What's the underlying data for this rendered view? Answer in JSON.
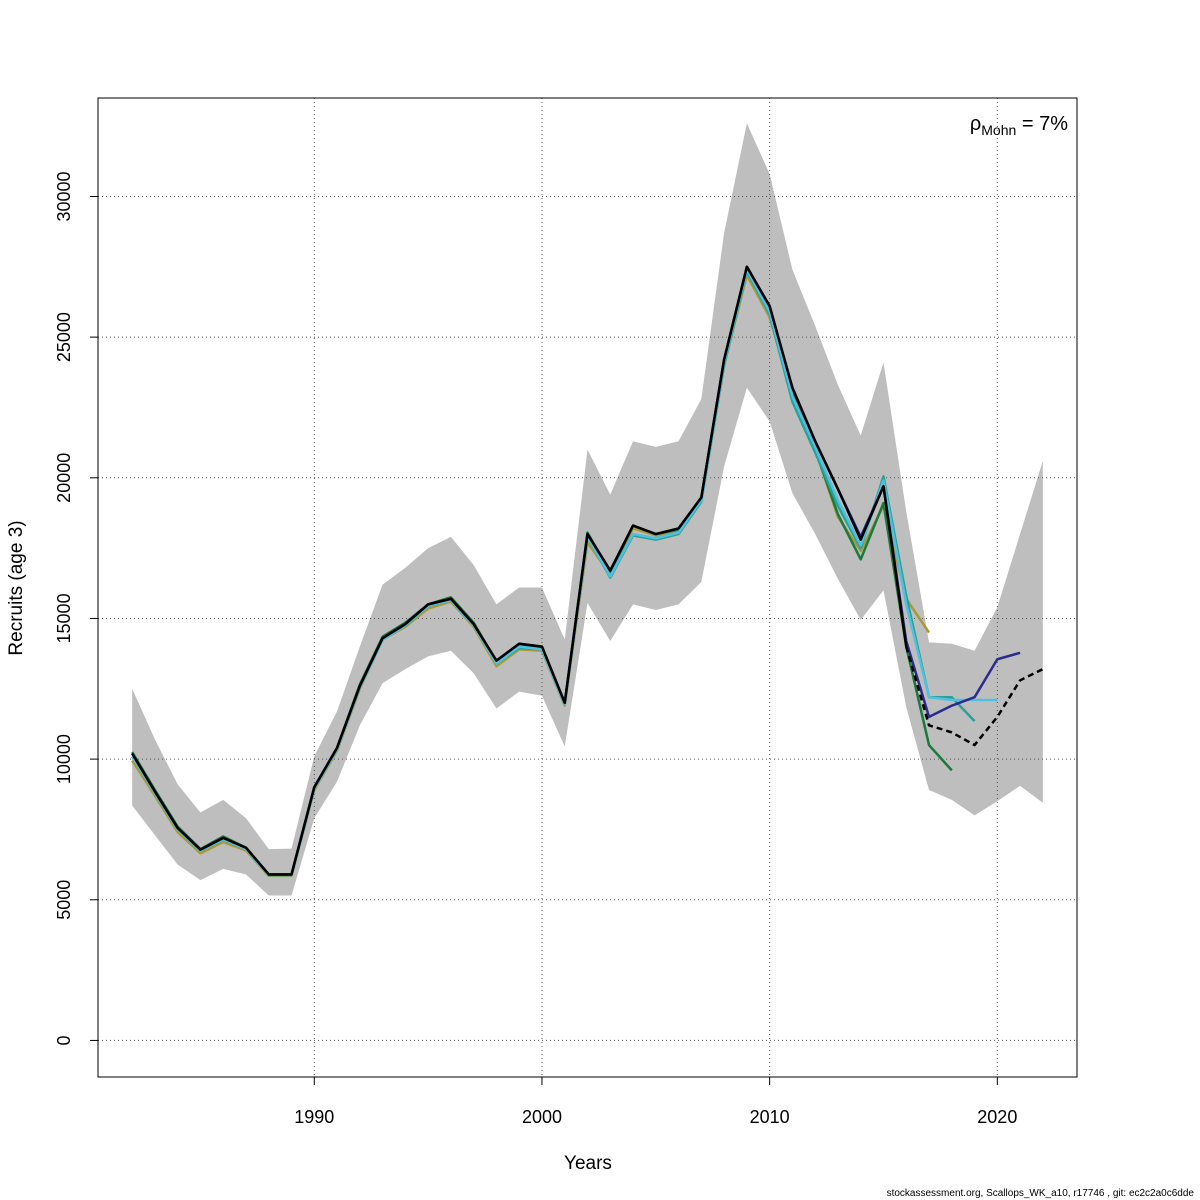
{
  "chart_data": {
    "type": "line",
    "xlabel": "Years",
    "ylabel": "Recruits (age 3)",
    "xlim": [
      1980.5,
      2023.5
    ],
    "ylim": [
      -1300,
      33500
    ],
    "x_ticks": [
      1990,
      2000,
      2010,
      2020
    ],
    "y_ticks": [
      0,
      5000,
      10000,
      15000,
      20000,
      25000,
      30000
    ],
    "grid": true,
    "annotation": {
      "symbol": "ρ",
      "subscript": "Mohn",
      "value": " = 7%"
    },
    "footer": "stockassessment.org, Scallops_WK_a10, r17746 , git: ec2c2a0c6dde",
    "confidence_band": {
      "color": "#bebebe",
      "x": [
        1982,
        1983,
        1984,
        1985,
        1986,
        1987,
        1988,
        1989,
        1990,
        1991,
        1992,
        1993,
        1994,
        1995,
        1996,
        1997,
        1998,
        1999,
        2000,
        2001,
        2002,
        2003,
        2004,
        2005,
        2006,
        2007,
        2008,
        2009,
        2010,
        2011,
        2012,
        2013,
        2014,
        2015,
        2016,
        2017,
        2018,
        2019,
        2020,
        2021,
        2022
      ],
      "upper": [
        12500,
        10700,
        9100,
        8100,
        8550,
        7900,
        6800,
        6820,
        10100,
        11700,
        14000,
        16200,
        16800,
        17500,
        17900,
        16900,
        15500,
        16100,
        16100,
        14250,
        21000,
        19400,
        21300,
        21100,
        21300,
        22800,
        28700,
        32600,
        30800,
        27400,
        25400,
        23300,
        21500,
        24100,
        18800,
        14150,
        14100,
        13850,
        15400,
        18000,
        20600
      ],
      "lower": [
        8350,
        7300,
        6250,
        5700,
        6100,
        5900,
        5150,
        5150,
        7900,
        9200,
        11200,
        12700,
        13200,
        13650,
        13850,
        13050,
        11800,
        12400,
        12250,
        10450,
        15550,
        14200,
        15500,
        15300,
        15500,
        16300,
        20400,
        23200,
        22000,
        19450,
        18000,
        16400,
        14950,
        16000,
        11850,
        8900,
        8550,
        8000,
        8500,
        9050,
        8450
      ]
    },
    "series": [
      {
        "color": "#000000",
        "dashed_from": 2016,
        "x": [
          1982,
          1983,
          1984,
          1985,
          1986,
          1987,
          1988,
          1989,
          1990,
          1991,
          1992,
          1993,
          1994,
          1995,
          1996,
          1997,
          1998,
          1999,
          2000,
          2001,
          2002,
          2003,
          2004,
          2005,
          2006,
          2007,
          2008,
          2009,
          2010,
          2011,
          2012,
          2013,
          2014,
          2015,
          2016,
          2017,
          2018,
          2019,
          2020,
          2021,
          2022
        ],
        "values": [
          10200,
          8850,
          7550,
          6780,
          7200,
          6850,
          5900,
          5900,
          9000,
          10400,
          12600,
          14300,
          14800,
          15500,
          15700,
          14800,
          13500,
          14100,
          14000,
          12000,
          18000,
          16700,
          18300,
          18000,
          18200,
          19300,
          24200,
          27500,
          26100,
          23200,
          21300,
          19600,
          17800,
          19700,
          14000,
          11200,
          10950,
          10500,
          11500,
          12800,
          13200
        ]
      },
      {
        "color": "#2b2b8c",
        "x": [
          1982,
          1983,
          1984,
          1985,
          1986,
          1987,
          1988,
          1989,
          1990,
          1991,
          1992,
          1993,
          1994,
          1995,
          1996,
          1997,
          1998,
          1999,
          2000,
          2001,
          2002,
          2003,
          2004,
          2005,
          2006,
          2007,
          2008,
          2009,
          2010,
          2011,
          2012,
          2013,
          2014,
          2015,
          2016,
          2017,
          2018,
          2019,
          2020,
          2021
        ],
        "values": [
          10200,
          8850,
          7550,
          6780,
          7200,
          6850,
          5900,
          5900,
          9000,
          10400,
          12600,
          14300,
          14800,
          15500,
          15700,
          14800,
          13500,
          14100,
          14000,
          12000,
          18000,
          16700,
          18300,
          18000,
          18200,
          19300,
          24200,
          27500,
          26100,
          23200,
          21300,
          19600,
          17900,
          19700,
          14200,
          11500,
          11900,
          12200,
          13550,
          13780
        ]
      },
      {
        "color": "#4fc0e0",
        "x": [
          1982,
          1983,
          1984,
          1985,
          1986,
          1987,
          1988,
          1989,
          1990,
          1991,
          1992,
          1993,
          1994,
          1995,
          1996,
          1997,
          1998,
          1999,
          2000,
          2001,
          2002,
          2003,
          2004,
          2005,
          2006,
          2007,
          2008,
          2009,
          2010,
          2011,
          2012,
          2013,
          2014,
          2015,
          2016,
          2017,
          2018,
          2019,
          2020
        ],
        "values": [
          10100,
          8800,
          7500,
          6750,
          7150,
          6800,
          5880,
          5880,
          8950,
          10350,
          12550,
          14250,
          14750,
          15450,
          15650,
          14750,
          13400,
          14000,
          13900,
          11950,
          17900,
          16500,
          18000,
          17850,
          18050,
          19200,
          24100,
          27400,
          25900,
          22900,
          21100,
          19200,
          17600,
          19900,
          15500,
          12200,
          12100,
          12100,
          12100
        ]
      },
      {
        "color": "#2aa198",
        "x": [
          1982,
          1983,
          1984,
          1985,
          1986,
          1987,
          1988,
          1989,
          1990,
          1991,
          1992,
          1993,
          1994,
          1995,
          1996,
          1997,
          1998,
          1999,
          2000,
          2001,
          2002,
          2003,
          2004,
          2005,
          2006,
          2007,
          2008,
          2009,
          2010,
          2011,
          2012,
          2013,
          2014,
          2015,
          2016,
          2017,
          2018,
          2019
        ],
        "values": [
          10100,
          8800,
          7500,
          6750,
          7150,
          6800,
          5880,
          5880,
          8950,
          10350,
          12550,
          14250,
          14750,
          15450,
          15650,
          14750,
          13400,
          13950,
          13900,
          11950,
          17900,
          16450,
          17950,
          17800,
          18000,
          19150,
          24000,
          27350,
          25800,
          22700,
          20900,
          19000,
          17500,
          20050,
          15800,
          12200,
          12200,
          11350
        ]
      },
      {
        "color": "#1a7a3a",
        "x": [
          1982,
          1983,
          1984,
          1985,
          1986,
          1987,
          1988,
          1989,
          1990,
          1991,
          1992,
          1993,
          1994,
          1995,
          1996,
          1997,
          1998,
          1999,
          2000,
          2001,
          2002,
          2003,
          2004,
          2005,
          2006,
          2007,
          2008,
          2009,
          2010,
          2011,
          2012,
          2013,
          2014,
          2015,
          2016,
          2017,
          2018
        ],
        "values": [
          10250,
          8900,
          7600,
          6800,
          7250,
          6850,
          5900,
          5900,
          9000,
          10400,
          12650,
          14350,
          14850,
          15500,
          15750,
          14850,
          13450,
          14000,
          13950,
          12000,
          18050,
          16600,
          18300,
          18000,
          18150,
          19300,
          24200,
          27500,
          26100,
          23000,
          21000,
          18700,
          17100,
          19100,
          14000,
          10500,
          9600
        ]
      },
      {
        "color": "#a89a3a",
        "x": [
          1982,
          1983,
          1984,
          1985,
          1986,
          1987,
          1988,
          1989,
          1990,
          1991,
          1992,
          1993,
          1994,
          1995,
          1996,
          1997,
          1998,
          1999,
          2000,
          2001,
          2002,
          2003,
          2004,
          2005,
          2006,
          2007,
          2008,
          2009,
          2010,
          2011,
          2012,
          2013,
          2014,
          2015,
          2016,
          2017
        ],
        "values": [
          9950,
          8700,
          7400,
          6650,
          7050,
          6750,
          5850,
          5850,
          8900,
          10300,
          12500,
          14250,
          14700,
          15350,
          15600,
          14700,
          13300,
          13900,
          13850,
          11900,
          17700,
          16550,
          18200,
          17950,
          18050,
          19250,
          24000,
          27200,
          25700,
          22900,
          21000,
          18600,
          17400,
          19000,
          15700,
          14500
        ]
      }
    ]
  }
}
